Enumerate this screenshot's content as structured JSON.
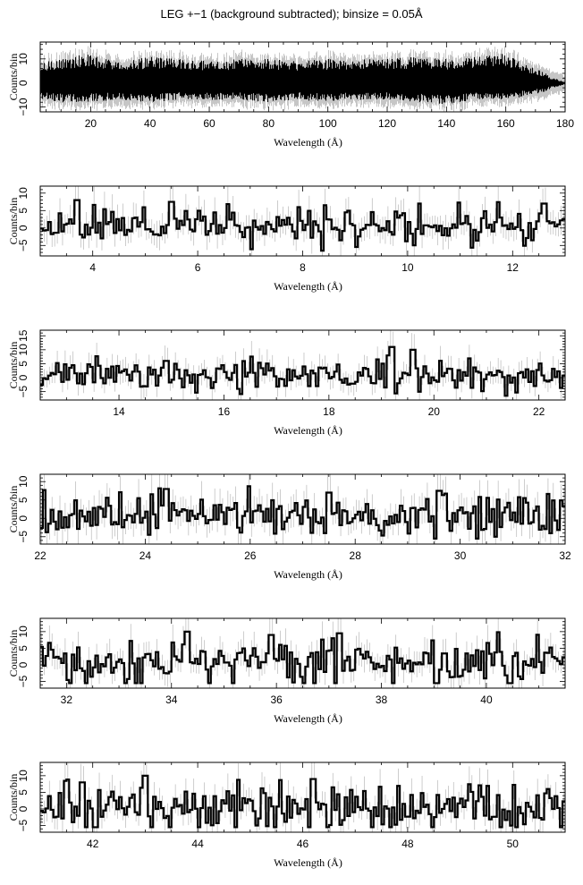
{
  "title": "LEG +−1 (background subtracted); binsize = 0.05Å",
  "colors": {
    "data": "#000000",
    "error_bars": "#b8b8b8",
    "frame": "#000000"
  },
  "chart_data": [
    {
      "type": "line",
      "xlabel": "Wavelength (Å)",
      "ylabel": "Counts/bin",
      "xlim": [
        3,
        180
      ],
      "ylim": [
        -12,
        17
      ],
      "xticks": [
        20,
        40,
        60,
        80,
        100,
        120,
        140,
        160,
        180
      ],
      "yticks": [
        -10,
        0,
        10
      ],
      "envelope": [
        [
          3,
          -7,
          9
        ],
        [
          10,
          -8,
          10
        ],
        [
          18,
          -8,
          12
        ],
        [
          30,
          -7,
          9
        ],
        [
          40,
          -8,
          11
        ],
        [
          50,
          -7,
          10
        ],
        [
          60,
          -7,
          9
        ],
        [
          70,
          -7,
          10
        ],
        [
          80,
          -8,
          10
        ],
        [
          90,
          -7,
          9
        ],
        [
          100,
          -8,
          10
        ],
        [
          110,
          -7,
          10
        ],
        [
          120,
          -7,
          10
        ],
        [
          130,
          -8,
          11
        ],
        [
          140,
          -9,
          10
        ],
        [
          150,
          -7,
          11
        ],
        [
          157,
          -7,
          13
        ],
        [
          165,
          -6,
          9
        ],
        [
          172,
          -4,
          5
        ],
        [
          176,
          -2,
          2
        ],
        [
          180,
          -0.5,
          0.5
        ]
      ]
    },
    {
      "type": "line",
      "xlabel": "Wavelength (Å)",
      "ylabel": "Counts/bin",
      "xlim": [
        3,
        13
      ],
      "ylim": [
        -8,
        12
      ],
      "xticks": [
        4,
        6,
        8,
        10,
        12
      ],
      "yticks": [
        -5,
        0,
        5,
        10
      ],
      "seed": 11,
      "amp": 3.0,
      "peaks": [
        [
          3.7,
          8
        ],
        [
          5.5,
          7.5
        ],
        [
          12.6,
          7
        ]
      ]
    },
    {
      "type": "line",
      "xlabel": "Wavelength (Å)",
      "ylabel": "Counts/bin",
      "xlim": [
        12.5,
        22.5
      ],
      "ylim": [
        -8,
        17
      ],
      "xticks": [
        14,
        16,
        18,
        20,
        22
      ],
      "yticks": [
        -5,
        0,
        5,
        10,
        15
      ],
      "seed": 23,
      "amp": 3.2,
      "peaks": [
        [
          19.2,
          11
        ],
        [
          19.6,
          10
        ],
        [
          14.9,
          6
        ]
      ]
    },
    {
      "type": "line",
      "xlabel": "Wavelength (Å)",
      "ylabel": "Counts/bin",
      "xlim": [
        22,
        32
      ],
      "ylim": [
        -7,
        12
      ],
      "xticks": [
        22,
        24,
        26,
        28,
        30,
        32
      ],
      "yticks": [
        -5,
        0,
        5,
        10
      ],
      "seed": 37,
      "amp": 3.2,
      "peaks": [
        [
          24.4,
          8
        ],
        [
          27.5,
          7
        ],
        [
          29.6,
          7.5
        ]
      ]
    },
    {
      "type": "line",
      "xlabel": "Wavelength (Å)",
      "ylabel": "Counts/bin",
      "xlim": [
        31.5,
        41.5
      ],
      "ylim": [
        -7,
        14
      ],
      "xticks": [
        32,
        34,
        36,
        38,
        40
      ],
      "yticks": [
        -5,
        0,
        5,
        10
      ],
      "seed": 53,
      "amp": 3.8,
      "peaks": [
        [
          34.3,
          10
        ],
        [
          37.2,
          9.5
        ],
        [
          35.9,
          9
        ]
      ]
    },
    {
      "type": "line",
      "xlabel": "Wavelength (Å)",
      "ylabel": "Counts/bin",
      "xlim": [
        41,
        51
      ],
      "ylim": [
        -7,
        14
      ],
      "xticks": [
        42,
        44,
        46,
        48,
        50
      ],
      "yticks": [
        -5,
        0,
        5,
        10
      ],
      "seed": 71,
      "amp": 4.0,
      "peaks": [
        [
          43.0,
          10
        ],
        [
          46.2,
          9
        ],
        [
          41.8,
          8
        ]
      ]
    }
  ]
}
